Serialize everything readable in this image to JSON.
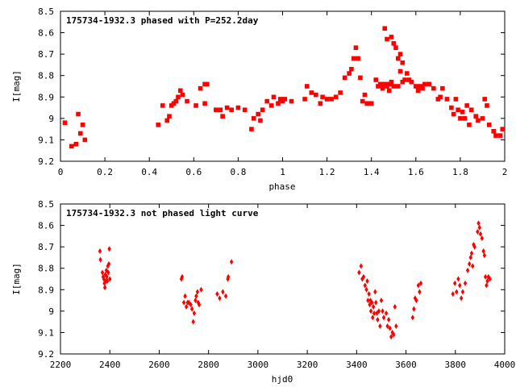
{
  "chart_data": [
    {
      "type": "scatter",
      "title": "175734-1932.3 phased with P=252.2day",
      "xlabel": "phase",
      "ylabel": "I[mag]",
      "xlim": [
        0,
        2
      ],
      "ylim": [
        9.2,
        8.5
      ],
      "y_inverted": true,
      "xticks": [
        "0",
        "0.2",
        "0.4",
        "0.6",
        "0.8",
        "1",
        "1.2",
        "1.4",
        "1.6",
        "1.8",
        "2"
      ],
      "yticks": [
        "8.5",
        "8.6",
        "8.7",
        "8.8",
        "8.9",
        "9",
        "9.1",
        "9.2"
      ],
      "grid": false,
      "marker": "filled-square",
      "color": "#ff0000",
      "points": [
        [
          0.02,
          9.02
        ],
        [
          0.05,
          9.13
        ],
        [
          0.07,
          9.12
        ],
        [
          0.08,
          8.98
        ],
        [
          0.09,
          9.07
        ],
        [
          0.1,
          9.03
        ],
        [
          0.11,
          9.1
        ],
        [
          0.44,
          9.03
        ],
        [
          0.46,
          8.94
        ],
        [
          0.48,
          9.01
        ],
        [
          0.49,
          8.99
        ],
        [
          0.5,
          8.94
        ],
        [
          0.51,
          8.93
        ],
        [
          0.52,
          8.92
        ],
        [
          0.53,
          8.9
        ],
        [
          0.54,
          8.87
        ],
        [
          0.55,
          8.89
        ],
        [
          0.57,
          8.92
        ],
        [
          0.61,
          8.94
        ],
        [
          0.63,
          8.86
        ],
        [
          0.65,
          8.84
        ],
        [
          0.66,
          8.84
        ],
        [
          0.65,
          8.93
        ],
        [
          0.7,
          8.96
        ],
        [
          0.72,
          8.96
        ],
        [
          0.73,
          8.99
        ],
        [
          0.75,
          8.95
        ],
        [
          0.77,
          8.96
        ],
        [
          0.8,
          8.95
        ],
        [
          0.83,
          8.96
        ],
        [
          0.86,
          9.05
        ],
        [
          0.87,
          9.0
        ],
        [
          0.89,
          8.98
        ],
        [
          0.9,
          9.01
        ],
        [
          0.91,
          8.96
        ],
        [
          0.93,
          8.92
        ],
        [
          0.95,
          8.94
        ],
        [
          0.96,
          8.9
        ],
        [
          0.98,
          8.93
        ],
        [
          0.99,
          8.91
        ],
        [
          1.0,
          8.92
        ],
        [
          1.01,
          8.91
        ],
        [
          1.04,
          8.92
        ],
        [
          1.1,
          8.91
        ],
        [
          1.11,
          8.85
        ],
        [
          1.13,
          8.88
        ],
        [
          1.15,
          8.89
        ],
        [
          1.17,
          8.93
        ],
        [
          1.18,
          8.9
        ],
        [
          1.2,
          8.91
        ],
        [
          1.22,
          8.91
        ],
        [
          1.24,
          8.9
        ],
        [
          1.26,
          8.88
        ],
        [
          1.28,
          8.81
        ],
        [
          1.3,
          8.79
        ],
        [
          1.31,
          8.77
        ],
        [
          1.32,
          8.72
        ],
        [
          1.33,
          8.67
        ],
        [
          1.34,
          8.72
        ],
        [
          1.35,
          8.81
        ],
        [
          1.36,
          8.92
        ],
        [
          1.37,
          8.89
        ],
        [
          1.38,
          8.93
        ],
        [
          1.4,
          8.93
        ],
        [
          1.42,
          8.82
        ],
        [
          1.43,
          8.85
        ],
        [
          1.44,
          8.84
        ],
        [
          1.45,
          8.86
        ],
        [
          1.45,
          8.84
        ],
        [
          1.46,
          8.58
        ],
        [
          1.46,
          8.84
        ],
        [
          1.47,
          8.63
        ],
        [
          1.47,
          8.85
        ],
        [
          1.48,
          8.87
        ],
        [
          1.48,
          8.84
        ],
        [
          1.49,
          8.62
        ],
        [
          1.49,
          8.83
        ],
        [
          1.5,
          8.65
        ],
        [
          1.5,
          8.85
        ],
        [
          1.51,
          8.67
        ],
        [
          1.52,
          8.72
        ],
        [
          1.52,
          8.85
        ],
        [
          1.53,
          8.7
        ],
        [
          1.53,
          8.78
        ],
        [
          1.54,
          8.74
        ],
        [
          1.54,
          8.83
        ],
        [
          1.55,
          8.82
        ],
        [
          1.56,
          8.79
        ],
        [
          1.57,
          8.82
        ],
        [
          1.58,
          8.83
        ],
        [
          1.6,
          8.85
        ],
        [
          1.61,
          8.87
        ],
        [
          1.62,
          8.85
        ],
        [
          1.63,
          8.86
        ],
        [
          1.64,
          8.84
        ],
        [
          1.66,
          8.84
        ],
        [
          1.68,
          8.86
        ],
        [
          1.7,
          8.91
        ],
        [
          1.71,
          8.9
        ],
        [
          1.72,
          8.86
        ],
        [
          1.74,
          8.91
        ],
        [
          1.76,
          8.95
        ],
        [
          1.77,
          8.98
        ],
        [
          1.78,
          8.91
        ],
        [
          1.79,
          8.96
        ],
        [
          1.8,
          9.0
        ],
        [
          1.81,
          8.97
        ],
        [
          1.82,
          9.0
        ],
        [
          1.83,
          8.94
        ],
        [
          1.84,
          9.03
        ],
        [
          1.85,
          8.96
        ],
        [
          1.87,
          8.99
        ],
        [
          1.88,
          9.01
        ],
        [
          1.9,
          9.0
        ],
        [
          1.91,
          8.91
        ],
        [
          1.92,
          8.94
        ],
        [
          1.93,
          9.03
        ],
        [
          1.95,
          9.06
        ],
        [
          1.96,
          9.08
        ],
        [
          1.98,
          9.08
        ],
        [
          1.99,
          9.05
        ]
      ]
    },
    {
      "type": "scatter",
      "title": "175734-1932.3 not phased light curve",
      "xlabel": "hjd0",
      "ylabel": "I[mag]",
      "xlim": [
        2200,
        4000
      ],
      "ylim": [
        9.2,
        8.5
      ],
      "y_inverted": true,
      "xticks": [
        "2200",
        "2400",
        "2600",
        "2800",
        "3000",
        "3200",
        "3400",
        "3600",
        "3800",
        "4000"
      ],
      "yticks": [
        "8.5",
        "8.6",
        "8.7",
        "8.8",
        "8.9",
        "9",
        "9.1",
        "9.2"
      ],
      "grid": false,
      "marker": "diamond",
      "color": "#ff0000",
      "points": [
        [
          2360,
          8.72
        ],
        [
          2362,
          8.76
        ],
        [
          2370,
          8.82
        ],
        [
          2373,
          8.84
        ],
        [
          2376,
          8.85
        ],
        [
          2378,
          8.87
        ],
        [
          2380,
          8.89
        ],
        [
          2382,
          8.83
        ],
        [
          2384,
          8.86
        ],
        [
          2386,
          8.81
        ],
        [
          2388,
          8.84
        ],
        [
          2390,
          8.86
        ],
        [
          2392,
          8.79
        ],
        [
          2394,
          8.82
        ],
        [
          2396,
          8.78
        ],
        [
          2398,
          8.71
        ],
        [
          2400,
          8.85
        ],
        [
          2690,
          8.85
        ],
        [
          2693,
          8.84
        ],
        [
          2700,
          8.96
        ],
        [
          2705,
          8.93
        ],
        [
          2710,
          8.98
        ],
        [
          2715,
          8.96
        ],
        [
          2720,
          8.96
        ],
        [
          2728,
          8.97
        ],
        [
          2733,
          8.99
        ],
        [
          2738,
          9.05
        ],
        [
          2742,
          9.01
        ],
        [
          2747,
          8.95
        ],
        [
          2750,
          8.93
        ],
        [
          2755,
          8.91
        ],
        [
          2758,
          8.96
        ],
        [
          2762,
          8.97
        ],
        [
          2770,
          8.9
        ],
        [
          2835,
          8.92
        ],
        [
          2845,
          8.94
        ],
        [
          2858,
          8.91
        ],
        [
          2870,
          8.93
        ],
        [
          2878,
          8.85
        ],
        [
          2880,
          8.84
        ],
        [
          2893,
          8.77
        ],
        [
          3410,
          8.82
        ],
        [
          3418,
          8.79
        ],
        [
          3423,
          8.85
        ],
        [
          3428,
          8.84
        ],
        [
          3434,
          8.88
        ],
        [
          3440,
          8.9
        ],
        [
          3443,
          8.86
        ],
        [
          3446,
          8.95
        ],
        [
          3450,
          8.92
        ],
        [
          3453,
          8.97
        ],
        [
          3456,
          8.95
        ],
        [
          3458,
          9.0
        ],
        [
          3462,
          8.96
        ],
        [
          3465,
          9.03
        ],
        [
          3468,
          8.98
        ],
        [
          3471,
          9.01
        ],
        [
          3475,
          8.91
        ],
        [
          3478,
          8.96
        ],
        [
          3482,
          9.01
        ],
        [
          3485,
          9.04
        ],
        [
          3490,
          9.0
        ],
        [
          3495,
          9.07
        ],
        [
          3500,
          8.95
        ],
        [
          3505,
          9.0
        ],
        [
          3510,
          9.03
        ],
        [
          3520,
          9.01
        ],
        [
          3525,
          9.07
        ],
        [
          3530,
          9.04
        ],
        [
          3535,
          9.08
        ],
        [
          3540,
          9.12
        ],
        [
          3545,
          9.1
        ],
        [
          3550,
          9.11
        ],
        [
          3555,
          8.98
        ],
        [
          3560,
          9.07
        ],
        [
          3627,
          9.03
        ],
        [
          3632,
          8.99
        ],
        [
          3637,
          8.94
        ],
        [
          3642,
          8.95
        ],
        [
          3650,
          8.88
        ],
        [
          3655,
          8.91
        ],
        [
          3660,
          8.87
        ],
        [
          3790,
          8.92
        ],
        [
          3798,
          8.87
        ],
        [
          3805,
          8.91
        ],
        [
          3812,
          8.85
        ],
        [
          3818,
          8.88
        ],
        [
          3824,
          8.94
        ],
        [
          3830,
          8.91
        ],
        [
          3840,
          8.87
        ],
        [
          3850,
          8.81
        ],
        [
          3857,
          8.78
        ],
        [
          3862,
          8.75
        ],
        [
          3866,
          8.73
        ],
        [
          3870,
          8.79
        ],
        [
          3874,
          8.69
        ],
        [
          3878,
          8.7
        ],
        [
          3890,
          8.63
        ],
        [
          3894,
          8.59
        ],
        [
          3898,
          8.61
        ],
        [
          3902,
          8.64
        ],
        [
          3908,
          8.66
        ],
        [
          3914,
          8.72
        ],
        [
          3918,
          8.74
        ],
        [
          3922,
          8.84
        ],
        [
          3926,
          8.88
        ],
        [
          3930,
          8.86
        ],
        [
          3934,
          8.84
        ],
        [
          3940,
          8.85
        ]
      ]
    }
  ]
}
